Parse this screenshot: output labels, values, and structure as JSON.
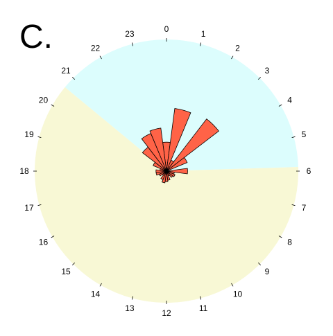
{
  "panel_label": "C.",
  "colors": {
    "day": "#dcfdfd",
    "night": "#f8f8d5",
    "bar_fill": "#ff6347",
    "bar_stroke": "#000000"
  },
  "chart_data": {
    "type": "polar-bar",
    "title": "",
    "angular_axis": {
      "period": 24,
      "zero_at": "top",
      "direction": "clockwise",
      "tick_labels": [
        "0",
        "1",
        "2",
        "3",
        "4",
        "5",
        "6",
        "7",
        "8",
        "9",
        "10",
        "11",
        "12",
        "13",
        "14",
        "15",
        "16",
        "17",
        "18",
        "19",
        "20",
        "21",
        "22",
        "23"
      ]
    },
    "background_sectors": [
      {
        "name": "",
        "start_hour": 20.64,
        "end_hour": 5.88,
        "color": "#dcfdfd"
      },
      {
        "name": "",
        "start_hour": 5.88,
        "end_hour": 20.64,
        "color": "#f8f8d5"
      }
    ],
    "radius_max": 1.0,
    "bars": [
      {
        "hour": 0,
        "value": 0.22
      },
      {
        "hour": 1,
        "value": 0.48
      },
      {
        "hour": 2,
        "value": 0.09
      },
      {
        "hour": 3,
        "value": 0.5
      },
      {
        "hour": 4,
        "value": 0.17
      },
      {
        "hour": 5,
        "value": 0.01
      },
      {
        "hour": 6,
        "value": 0.16
      },
      {
        "hour": 7,
        "value": 0.06
      },
      {
        "hour": 8,
        "value": 0.07
      },
      {
        "hour": 9,
        "value": 0.06
      },
      {
        "hour": 10,
        "value": 0.04
      },
      {
        "hour": 11,
        "value": 0.07
      },
      {
        "hour": 12,
        "value": 0.08
      },
      {
        "hour": 13,
        "value": 0.09
      },
      {
        "hour": 14,
        "value": 0.07
      },
      {
        "hour": 15,
        "value": 0.04
      },
      {
        "hour": 16,
        "value": 0.06
      },
      {
        "hour": 17,
        "value": 0.08
      },
      {
        "hour": 18,
        "value": 0.08
      },
      {
        "hour": 19,
        "value": 0.05
      },
      {
        "hour": 20,
        "value": 0.11
      },
      {
        "hour": 21,
        "value": 0.23
      },
      {
        "hour": 22,
        "value": 0.31
      },
      {
        "hour": 23,
        "value": 0.33
      }
    ]
  }
}
